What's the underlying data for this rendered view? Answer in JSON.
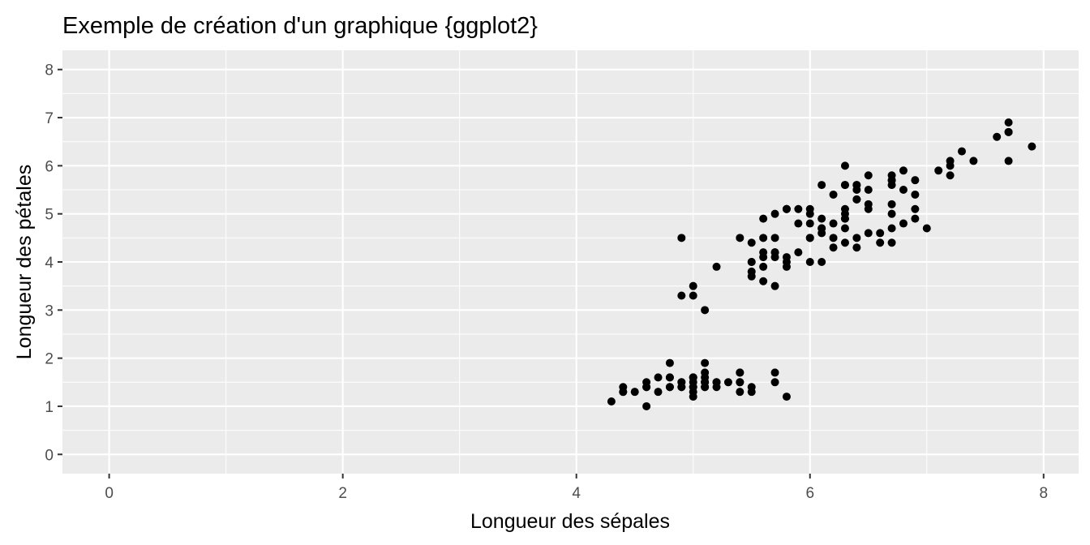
{
  "chart_data": {
    "type": "scatter",
    "title": "Exemple de création d'un graphique {ggplot2}",
    "xlabel": "Longueur des sépales",
    "ylabel": "Longueur des pétales",
    "xlim": [
      -0.4,
      8.3
    ],
    "ylim": [
      -0.4,
      8.4
    ],
    "x_ticks": [
      0,
      2,
      4,
      6,
      8
    ],
    "y_ticks": [
      0,
      1,
      2,
      3,
      4,
      5,
      6,
      7,
      8
    ],
    "grid": true,
    "panel_background": "#ebebeb",
    "grid_color": "#ffffff",
    "point_color": "#000000",
    "points": [
      [
        5.1,
        1.4
      ],
      [
        4.9,
        1.4
      ],
      [
        4.7,
        1.3
      ],
      [
        4.6,
        1.5
      ],
      [
        5.0,
        1.4
      ],
      [
        5.4,
        1.7
      ],
      [
        4.6,
        1.4
      ],
      [
        5.0,
        1.5
      ],
      [
        4.4,
        1.4
      ],
      [
        4.9,
        1.5
      ],
      [
        5.4,
        1.5
      ],
      [
        4.8,
        1.6
      ],
      [
        4.8,
        1.4
      ],
      [
        4.3,
        1.1
      ],
      [
        5.8,
        1.2
      ],
      [
        5.7,
        1.5
      ],
      [
        5.4,
        1.3
      ],
      [
        5.1,
        1.4
      ],
      [
        5.7,
        1.7
      ],
      [
        5.1,
        1.5
      ],
      [
        5.4,
        1.7
      ],
      [
        5.1,
        1.5
      ],
      [
        4.6,
        1.0
      ],
      [
        5.1,
        1.7
      ],
      [
        4.8,
        1.9
      ],
      [
        5.0,
        1.6
      ],
      [
        5.0,
        1.6
      ],
      [
        5.2,
        1.5
      ],
      [
        5.2,
        1.4
      ],
      [
        4.7,
        1.6
      ],
      [
        4.8,
        1.6
      ],
      [
        5.4,
        1.5
      ],
      [
        5.2,
        1.5
      ],
      [
        5.5,
        1.4
      ],
      [
        4.9,
        1.5
      ],
      [
        5.0,
        1.2
      ],
      [
        5.5,
        1.3
      ],
      [
        4.9,
        1.4
      ],
      [
        4.4,
        1.3
      ],
      [
        5.1,
        1.5
      ],
      [
        5.0,
        1.3
      ],
      [
        4.5,
        1.3
      ],
      [
        4.4,
        1.3
      ],
      [
        5.0,
        1.6
      ],
      [
        5.1,
        1.9
      ],
      [
        4.8,
        1.4
      ],
      [
        5.1,
        1.6
      ],
      [
        4.6,
        1.4
      ],
      [
        5.3,
        1.5
      ],
      [
        5.0,
        1.4
      ],
      [
        7.0,
        4.7
      ],
      [
        6.4,
        4.5
      ],
      [
        6.9,
        4.9
      ],
      [
        5.5,
        4.0
      ],
      [
        6.5,
        4.6
      ],
      [
        5.7,
        4.5
      ],
      [
        6.3,
        4.7
      ],
      [
        4.9,
        3.3
      ],
      [
        6.6,
        4.6
      ],
      [
        5.2,
        3.9
      ],
      [
        5.0,
        3.5
      ],
      [
        5.9,
        4.2
      ],
      [
        6.0,
        4.0
      ],
      [
        6.1,
        4.7
      ],
      [
        5.6,
        3.6
      ],
      [
        6.7,
        4.4
      ],
      [
        5.6,
        4.5
      ],
      [
        5.8,
        4.1
      ],
      [
        6.2,
        4.5
      ],
      [
        5.6,
        3.9
      ],
      [
        5.9,
        4.8
      ],
      [
        6.1,
        4.0
      ],
      [
        6.3,
        4.9
      ],
      [
        6.1,
        4.7
      ],
      [
        6.4,
        4.3
      ],
      [
        6.6,
        4.4
      ],
      [
        6.8,
        4.8
      ],
      [
        6.7,
        5.0
      ],
      [
        6.0,
        4.5
      ],
      [
        5.7,
        3.5
      ],
      [
        5.5,
        3.8
      ],
      [
        5.5,
        3.7
      ],
      [
        5.8,
        3.9
      ],
      [
        6.0,
        5.1
      ],
      [
        5.4,
        4.5
      ],
      [
        6.0,
        4.5
      ],
      [
        6.7,
        4.7
      ],
      [
        6.3,
        4.4
      ],
      [
        5.6,
        4.1
      ],
      [
        5.5,
        4.0
      ],
      [
        5.5,
        4.4
      ],
      [
        6.1,
        4.6
      ],
      [
        5.8,
        4.0
      ],
      [
        5.0,
        3.3
      ],
      [
        5.6,
        4.2
      ],
      [
        5.7,
        4.2
      ],
      [
        5.7,
        4.2
      ],
      [
        6.2,
        4.3
      ],
      [
        5.1,
        3.0
      ],
      [
        5.7,
        4.1
      ],
      [
        6.3,
        6.0
      ],
      [
        5.8,
        5.1
      ],
      [
        7.1,
        5.9
      ],
      [
        6.3,
        5.6
      ],
      [
        6.5,
        5.8
      ],
      [
        7.6,
        6.6
      ],
      [
        4.9,
        4.5
      ],
      [
        7.3,
        6.3
      ],
      [
        6.7,
        5.8
      ],
      [
        7.2,
        6.1
      ],
      [
        6.5,
        5.1
      ],
      [
        6.4,
        5.3
      ],
      [
        6.8,
        5.5
      ],
      [
        5.7,
        5.0
      ],
      [
        5.8,
        5.1
      ],
      [
        6.4,
        5.3
      ],
      [
        6.5,
        5.5
      ],
      [
        7.7,
        6.7
      ],
      [
        7.7,
        6.9
      ],
      [
        6.0,
        5.0
      ],
      [
        6.9,
        5.7
      ],
      [
        5.6,
        4.9
      ],
      [
        7.7,
        6.7
      ],
      [
        6.3,
        4.9
      ],
      [
        6.7,
        5.7
      ],
      [
        7.2,
        6.0
      ],
      [
        6.2,
        4.8
      ],
      [
        6.1,
        4.9
      ],
      [
        6.4,
        5.6
      ],
      [
        7.2,
        5.8
      ],
      [
        7.4,
        6.1
      ],
      [
        7.9,
        6.4
      ],
      [
        6.4,
        5.6
      ],
      [
        6.3,
        5.1
      ],
      [
        6.1,
        5.6
      ],
      [
        7.7,
        6.1
      ],
      [
        6.3,
        5.6
      ],
      [
        6.4,
        5.5
      ],
      [
        6.0,
        4.8
      ],
      [
        6.9,
        5.4
      ],
      [
        6.7,
        5.6
      ],
      [
        6.9,
        5.1
      ],
      [
        5.8,
        5.1
      ],
      [
        6.8,
        5.9
      ],
      [
        6.7,
        5.7
      ],
      [
        6.7,
        5.2
      ],
      [
        6.3,
        5.0
      ],
      [
        6.5,
        5.2
      ],
      [
        6.2,
        5.4
      ],
      [
        5.9,
        5.1
      ]
    ]
  }
}
